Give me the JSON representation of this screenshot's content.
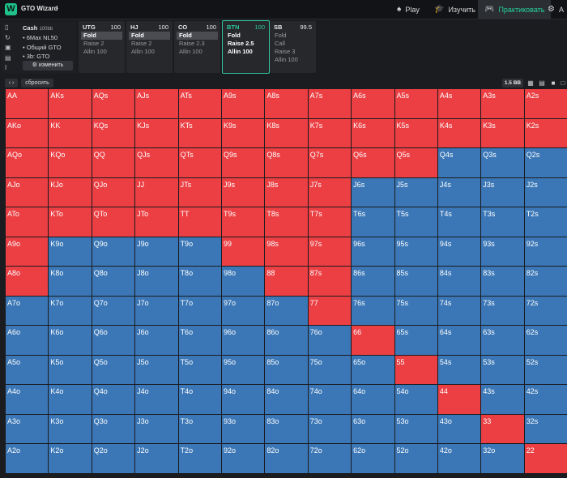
{
  "app": {
    "logo": "W",
    "title": "GTO Wizard",
    "chevron": "⌄"
  },
  "nav": [
    {
      "label": "Play",
      "icon": "play-icon",
      "glyph": "♠"
    },
    {
      "label": "Изучить",
      "icon": "study-icon",
      "glyph": "🎓"
    },
    {
      "label": "Практиковать",
      "icon": "practice-icon",
      "glyph": "🎮",
      "active": true
    },
    {
      "label": "А",
      "icon": "analyze-icon",
      "glyph": "⚙"
    }
  ],
  "left_panel": {
    "title": "Cash",
    "title_unit": "100bb",
    "items": [
      "• 6Max NL50",
      "• Общий GTO",
      "• 3b: GTO"
    ],
    "edit_button": "⚙ изменить"
  },
  "positions": [
    {
      "pos": "UTG",
      "stack": "100",
      "actions": [
        "Fold",
        "Raise 2",
        "Allin 100"
      ],
      "selected": 0
    },
    {
      "pos": "HJ",
      "stack": "100",
      "actions": [
        "Fold",
        "Raise 2",
        "Allin 100"
      ],
      "selected": 0
    },
    {
      "pos": "CO",
      "stack": "100",
      "actions": [
        "Fold",
        "Raise 2.3",
        "Allin 100"
      ],
      "selected": 0
    },
    {
      "pos": "BTN",
      "stack": "100",
      "actions": [
        "Fold",
        "Raise 2.5",
        "Allin 100"
      ],
      "selected": -1,
      "active": true
    },
    {
      "pos": "SB",
      "stack": "99.5",
      "actions": [
        "Fold",
        "Call",
        "Raise 3",
        "Allin 100"
      ],
      "selected": -1
    }
  ],
  "toolbar": {
    "nav_arrows": "‹ ›",
    "reset": "сбросить",
    "bb_size": "1.5 BB"
  },
  "colors": {
    "raise": "#eb3f43",
    "fold": "#3b77b6",
    "accent": "#26d39b"
  },
  "ranks": [
    "A",
    "K",
    "Q",
    "J",
    "T",
    "9",
    "8",
    "7",
    "6",
    "5",
    "4",
    "3",
    "2"
  ],
  "raise_cells": [
    "0-0",
    "0-1",
    "0-2",
    "0-3",
    "0-4",
    "0-5",
    "0-6",
    "0-7",
    "0-8",
    "0-9",
    "0-10",
    "0-11",
    "0-12",
    "1-0",
    "1-1",
    "1-2",
    "1-3",
    "1-4",
    "1-5",
    "1-6",
    "1-7",
    "1-8",
    "1-9",
    "1-10",
    "1-11",
    "1-12",
    "2-0",
    "2-1",
    "2-2",
    "2-3",
    "2-4",
    "2-5",
    "2-6",
    "2-7",
    "2-8",
    "2-9",
    "3-0",
    "3-1",
    "3-2",
    "3-3",
    "3-4",
    "3-5",
    "3-6",
    "3-7",
    "4-0",
    "4-1",
    "4-2",
    "4-3",
    "4-4",
    "4-5",
    "4-6",
    "4-7",
    "5-0",
    "5-5",
    "5-6",
    "5-7",
    "6-0",
    "6-6",
    "6-7",
    "7-7",
    "8-8",
    "9-9",
    "10-10",
    "11-11",
    "12-12"
  ]
}
